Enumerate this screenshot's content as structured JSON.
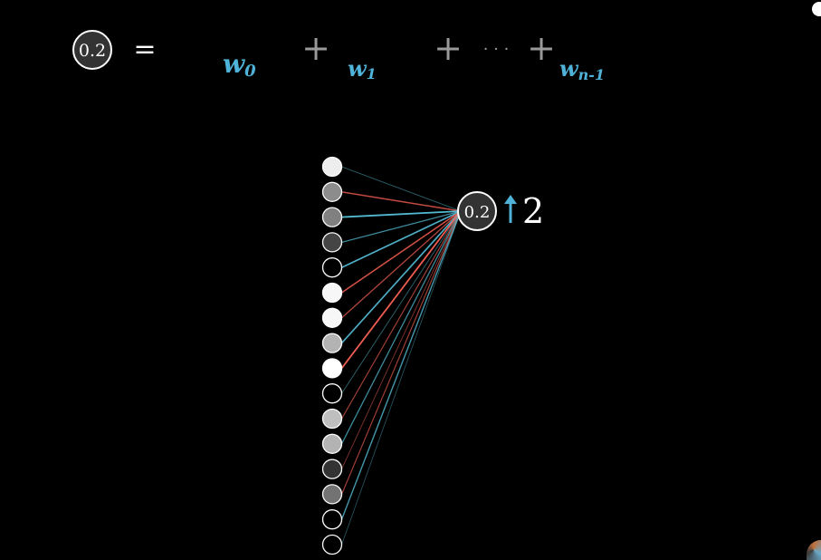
{
  "equation": {
    "lhs_value": "0.2",
    "equals": "=",
    "plus": "+",
    "dots": "· · ·",
    "terms": [
      {
        "base": "w",
        "sub": "0"
      },
      {
        "base": "w",
        "sub": "1"
      },
      {
        "base": "w",
        "sub": "n-1"
      }
    ]
  },
  "output_neuron": {
    "value": "0.2",
    "arrow_color": "#4fb3d9",
    "change_amount": "2"
  },
  "input_neurons": [
    {
      "activation": 0.93,
      "edge": "blue",
      "edge_weight": 0.3
    },
    {
      "activation": 0.55,
      "edge": "red",
      "edge_weight": 0.7
    },
    {
      "activation": 0.5,
      "edge": "blue",
      "edge_weight": 1.0
    },
    {
      "activation": 0.27,
      "edge": "blue",
      "edge_weight": 0.6
    },
    {
      "activation": 0.0,
      "edge": "blue",
      "edge_weight": 0.9
    },
    {
      "activation": 0.97,
      "edge": "red",
      "edge_weight": 0.8
    },
    {
      "activation": 0.97,
      "edge": "red",
      "edge_weight": 0.6
    },
    {
      "activation": 0.7,
      "edge": "blue",
      "edge_weight": 0.9
    },
    {
      "activation": 1.0,
      "edge": "red",
      "edge_weight": 1.0
    },
    {
      "activation": 0.0,
      "edge": "blue",
      "edge_weight": 0.3
    },
    {
      "activation": 0.75,
      "edge": "red",
      "edge_weight": 0.5
    },
    {
      "activation": 0.7,
      "edge": "blue",
      "edge_weight": 0.6
    },
    {
      "activation": 0.2,
      "edge": "red",
      "edge_weight": 0.3
    },
    {
      "activation": 0.45,
      "edge": "red",
      "edge_weight": 0.5
    },
    {
      "activation": 0.0,
      "edge": "blue",
      "edge_weight": 0.7
    },
    {
      "activation": 0.0,
      "edge": "blue",
      "edge_weight": 0.2
    }
  ],
  "colors": {
    "positive_weight": "#58c4dd",
    "negative_weight": "#fc6255",
    "neuron_stroke": "#ffffff",
    "background": "#000000",
    "operator": "#9a9a9a"
  }
}
